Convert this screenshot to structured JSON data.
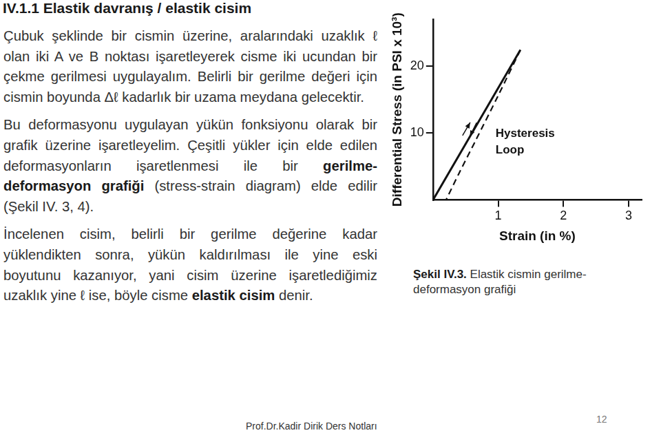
{
  "heading": "IV.1.1 Elastik davranış / elastik cisim",
  "paragraphs": [
    [
      {
        "text": "Çubuk şeklinde bir cismin üzerine, aralarındaki uzaklık ℓ olan iki A ve B noktası işaretleyerek cisme iki ucundan bir çekme gerilmesi uygulayalım. Belirli bir gerilme değeri için cismin boyunda Δℓ kadarlık bir uzama meydana gelecektir.",
        "bold": false
      }
    ],
    [
      {
        "text": "Bu deformasyonu uygulayan yükün fonksiyonu olarak bir grafik üzerine işaretleyelim. Çeşitli yükler için elde edilen deformasyonların işaretlenmesi ile bir ",
        "bold": false
      },
      {
        "text": "gerilme-deformasyon grafiği",
        "bold": true
      },
      {
        "text": " (stress-strain diagram) elde edilir (Şekil IV. 3, 4).",
        "bold": false
      }
    ],
    [
      {
        "text": "İncelenen cisim, belirli bir gerilme değerine kadar yüklendikten sonra, yükün kaldırılması ile yine eski boyutunu kazanıyor, yani cisim üzerine işaretlediğimiz uzaklık yine ℓ ise, böyle cisme ",
        "bold": false
      },
      {
        "text": "elastik cisim",
        "bold": true
      },
      {
        "text": " denir.",
        "bold": false
      }
    ]
  ],
  "chart_data": {
    "type": "line",
    "y_label": "Differential Stress (in PSI x 10³)",
    "x_label": "Strain (in %)",
    "annotations": [
      "Hysteresis Loop"
    ],
    "xlim": [
      0,
      3.2
    ],
    "xticks": [
      1,
      2,
      3
    ],
    "ylim": [
      0,
      27
    ],
    "yticks": [
      10,
      20
    ],
    "grid": false,
    "series": [
      {
        "color": "#111111",
        "line_style": "solid",
        "x": [
          0,
          1.34
        ],
        "values": [
          0,
          22.4
        ]
      },
      {
        "color": "#111111",
        "line_style": "dashed",
        "x": [
          1.34,
          1.0,
          0.65,
          0.4,
          0.2
        ],
        "values": [
          22.4,
          15.6,
          8.8,
          4.0,
          0
        ]
      }
    ]
  },
  "caption": {
    "label": "Şekil IV.3.",
    "text": "Elastik cismin gerilme-deformasyon grafiği"
  },
  "footer": "Prof.Dr.Kadir Dirik Ders Notları",
  "page_number": 12
}
